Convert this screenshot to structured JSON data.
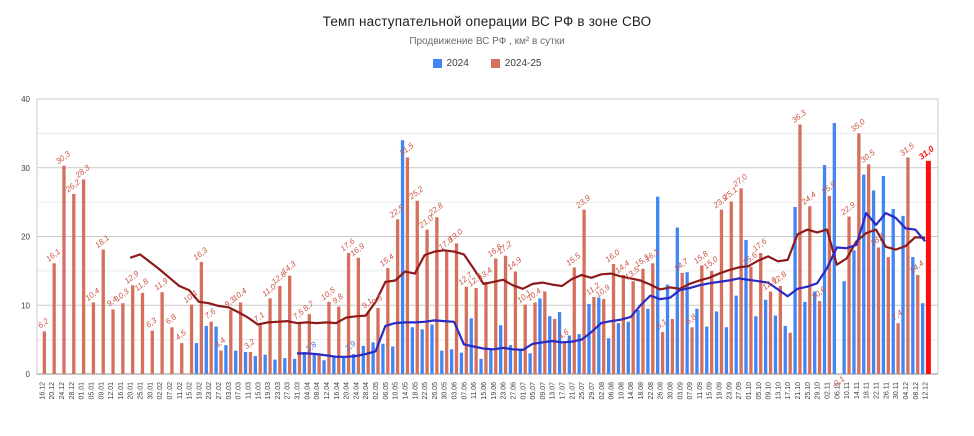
{
  "header": {
    "title": "Темп наступательной операции ВС РФ в зоне СВО",
    "subtitle": "Продвижение ВС РФ , км² в сутки"
  },
  "chart_data": {
    "type": "bar",
    "title": "Темп наступательной операции ВС РФ в зоне СВО",
    "subtitle": "Продвижение ВС РФ , км² в сутки",
    "ylim": [
      0,
      40
    ],
    "yticks": [
      0,
      10,
      20,
      30,
      40
    ],
    "yticks_minor": [
      5,
      15,
      25,
      35
    ],
    "grid": true,
    "legend_position": "top",
    "legend": [
      {
        "name": "2024",
        "color": "#4285f4"
      },
      {
        "name": "2024-25",
        "color": "#d4705c"
      }
    ],
    "colors": {
      "bar_2024": "#4285f4",
      "bar_2024_25": "#d4705c",
      "trend_2024": "#2a2ac4",
      "trend_2024_25": "#8e1b1b",
      "highlight_bar": "#fd0d0d",
      "label_2024": "#3c78d8",
      "label_2024_25": "#cb5542",
      "grid_major": "#c9c9c9",
      "grid_minor": "#ececec",
      "axis_line": "#8f8f8f",
      "tick_text": "#3c4043"
    },
    "highlight": {
      "category": "12.12",
      "index": 90,
      "label": "31,0"
    },
    "categories": [
      "16.12",
      "20.12",
      "24.12",
      "28.12",
      "01.01",
      "05.01",
      "09.01",
      "12.01",
      "16.01",
      "20.01",
      "25.01",
      "30.01",
      "02.02",
      "07.02",
      "11.02",
      "15.02",
      "19.02",
      "23.02",
      "27.02",
      "03.03",
      "07.03",
      "11.03",
      "15.03",
      "19.03",
      "23.03",
      "27.03",
      "31.03",
      "04.04",
      "08.04",
      "12.04",
      "16.04",
      "20.04",
      "24.04",
      "28.04",
      "02.05",
      "06.05",
      "10.05",
      "14.05",
      "18.05",
      "22.05",
      "26.05",
      "30.05",
      "03.06",
      "07.06",
      "11.06",
      "15.06",
      "19.06",
      "23.06",
      "27.06",
      "01.07",
      "05.07",
      "09.07",
      "13.07",
      "17.07",
      "21.07",
      "25.07",
      "29.07",
      "02.08",
      "06.08",
      "10.08",
      "14.08",
      "18.08",
      "22.08",
      "26.08",
      "30.08",
      "03.09",
      "07.09",
      "11.09",
      "15.09",
      "19.09",
      "23.09",
      "27.09",
      "01.10",
      "05.10",
      "09.10",
      "13.10",
      "17.10",
      "21.10",
      "25.10",
      "29.10",
      "02.11",
      "06.11",
      "10.11",
      "14.11",
      "18.11",
      "22.11",
      "26.11",
      "30.11",
      "04.12",
      "08.12",
      "12.12"
    ],
    "series": [
      {
        "name": "2024",
        "type": "bar",
        "color": "#4285f4",
        "values": [
          null,
          null,
          null,
          null,
          null,
          null,
          null,
          null,
          null,
          null,
          null,
          null,
          null,
          null,
          null,
          null,
          4.5,
          7.0,
          6.9,
          4.2,
          3.4,
          3.2,
          2.6,
          2.8,
          2.1,
          2.3,
          2.2,
          3.2,
          2.8,
          2.0,
          2.4,
          2.6,
          2.9,
          4.1,
          4.6,
          4.4,
          4.0,
          34.0,
          6.8,
          6.5,
          7.2,
          3.4,
          3.6,
          3.1,
          8.1,
          2.2,
          3.5,
          7.1,
          4.2,
          3.6,
          3.0,
          11.0,
          8.4,
          9.0,
          5.6,
          5.8,
          10.2,
          11.1,
          5.2,
          7.4,
          7.6,
          9.3,
          9.5,
          25.8,
          13.0,
          21.3,
          14.8,
          9.5,
          6.9,
          9.1,
          6.8,
          11.4,
          19.5,
          8.4,
          10.8,
          8.5,
          7.0,
          24.3,
          10.5,
          12.0,
          30.4,
          36.5,
          13.5,
          18.0,
          29.0,
          26.7,
          28.8,
          24.0,
          23.0,
          17.0,
          10.3
        ],
        "labels": [
          null,
          null,
          null,
          null,
          null,
          null,
          null,
          null,
          null,
          null,
          null,
          null,
          null,
          null,
          null,
          null,
          null,
          null,
          null,
          null,
          null,
          null,
          null,
          null,
          null,
          null,
          null,
          null,
          "2,8",
          null,
          null,
          null,
          "2,9",
          null,
          null,
          null,
          null,
          null,
          null,
          null,
          null,
          null,
          null,
          null,
          null,
          null,
          null,
          null,
          null,
          null,
          null,
          null,
          null,
          null,
          null,
          null,
          null,
          null,
          null,
          null,
          null,
          null,
          null,
          null,
          null,
          null,
          null,
          null,
          null,
          null,
          null,
          null,
          null,
          null,
          null,
          null,
          null,
          null,
          null,
          null,
          null,
          null,
          null,
          null,
          null,
          null,
          null,
          null,
          null,
          null,
          null
        ]
      },
      {
        "name": "2024-25",
        "type": "bar",
        "color": "#d4705c",
        "values": [
          6.2,
          16.1,
          30.3,
          26.2,
          28.3,
          10.4,
          18.1,
          9.4,
          10.3,
          12.9,
          11.8,
          6.3,
          11.9,
          6.8,
          4.5,
          10.1,
          16.3,
          7.6,
          3.4,
          9.3,
          10.4,
          3.2,
          7.1,
          11.0,
          12.8,
          14.3,
          7.5,
          8.7,
          3.0,
          10.5,
          9.8,
          17.6,
          16.9,
          9.1,
          9.6,
          15.4,
          22.5,
          31.5,
          25.2,
          21.0,
          22.8,
          17.8,
          19.0,
          12.7,
          12.5,
          13.4,
          16.8,
          17.2,
          14.9,
          10.1,
          10.4,
          12.0,
          8.0,
          4.6,
          15.5,
          23.9,
          11.2,
          10.9,
          16.0,
          14.4,
          13.5,
          15.3,
          16.1,
          6.1,
          8.0,
          14.7,
          6.8,
          15.8,
          15.0,
          23.9,
          25.1,
          27.0,
          15.6,
          17.6,
          12.0,
          12.8,
          6.0,
          36.3,
          24.4,
          10.6,
          25.9,
          -0.1,
          22.9,
          35.0,
          30.5,
          18.4,
          17.0,
          7.4,
          31.5,
          14.4,
          31.0
        ],
        "labels": [
          "6,2",
          "16,1",
          "30,3",
          "26,2",
          "28,3",
          "10,4",
          "18,1",
          "9,4",
          "10,3",
          "12,9",
          "11,8",
          "6,3",
          "11,9",
          "6,8",
          "4,5",
          "10,1",
          "16,3",
          "7,6",
          "3,4",
          "9,3",
          "10,4",
          "3,2",
          "7,1",
          "11,0",
          "12,8",
          "14,3",
          "7,5",
          "8,7",
          null,
          "10,5",
          "9,8",
          "17,6",
          "16,9",
          "9,1",
          "9,6",
          "15,4",
          "22,5",
          "31,5",
          "25,2",
          "21,0",
          "22,8",
          "17,8",
          "19,0",
          "12,7",
          "12,5",
          "13,4",
          "16,8",
          "17,2",
          "14,9",
          "10,1",
          "10,4",
          null,
          null,
          "4,6",
          "15,5",
          "23,9",
          "11,2",
          "10,9",
          "16,0",
          "14,4",
          "13,5",
          "15,3",
          "16,1",
          "6,1",
          null,
          "14,7",
          "6,8",
          "15,8",
          "15,0",
          "23,9",
          "25,1",
          "27,0",
          "15,6",
          "17,6",
          "12,0",
          "12,8",
          null,
          "36,3",
          "24,4",
          "10,6",
          "25,9",
          "-0,1",
          "22,9",
          "35,0",
          "30,5",
          "18,4",
          null,
          "7,4",
          "31,5",
          "14,4",
          "31,0"
        ]
      },
      {
        "name": "trend_2024_25",
        "type": "line",
        "color": "#8e1b1b",
        "values": [
          null,
          null,
          null,
          null,
          null,
          null,
          null,
          null,
          null,
          16.9,
          17.4,
          16.3,
          15.2,
          14.0,
          12.8,
          12.2,
          10.5,
          10.3,
          9.9,
          9.7,
          9.0,
          8.2,
          7.2,
          7.5,
          7.6,
          7.7,
          7.4,
          7.5,
          7.4,
          7.5,
          7.4,
          8.2,
          8.4,
          8.5,
          10.5,
          13.4,
          13.6,
          14.9,
          14.6,
          17.3,
          17.8,
          18.0,
          17.8,
          17.4,
          15.3,
          13.1,
          13.4,
          13.7,
          12.9,
          12.4,
          13.1,
          13.3,
          13.0,
          12.8,
          13.8,
          14.4,
          14.0,
          14.5,
          14.6,
          14.2,
          13.9,
          13.6,
          13.0,
          12.3,
          12.6,
          12.4,
          13.1,
          13.6,
          14.0,
          14.6,
          15.1,
          15.5,
          15.7,
          16.5,
          17.1,
          16.4,
          16.6,
          20.3,
          21.0,
          20.6,
          21.0,
          15.9,
          16.8,
          19.3,
          20.5,
          21.0,
          18.5,
          18.1,
          18.6,
          19.9,
          19.8
        ]
      },
      {
        "name": "trend_2024",
        "type": "line",
        "color": "#2a2ac4",
        "values": [
          null,
          null,
          null,
          null,
          null,
          null,
          null,
          null,
          null,
          null,
          null,
          null,
          null,
          null,
          null,
          null,
          null,
          null,
          null,
          null,
          null,
          null,
          null,
          null,
          null,
          null,
          3.0,
          3.0,
          2.9,
          2.7,
          2.5,
          2.5,
          2.6,
          2.9,
          3.3,
          7.0,
          7.4,
          7.5,
          7.5,
          7.6,
          7.8,
          7.7,
          7.6,
          4.3,
          4.0,
          3.7,
          3.6,
          3.8,
          3.6,
          3.5,
          4.4,
          4.6,
          4.8,
          4.6,
          4.7,
          5.0,
          6.1,
          7.4,
          7.7,
          7.9,
          8.3,
          10.0,
          11.4,
          10.9,
          11.1,
          12.2,
          12.5,
          12.9,
          13.2,
          13.4,
          13.6,
          13.9,
          13.7,
          13.5,
          13.3,
          12.3,
          11.3,
          12.4,
          12.7,
          13.2,
          15.4,
          18.4,
          18.3,
          18.8,
          23.4,
          21.7,
          23.4,
          22.7,
          21.2,
          21.0,
          19.3
        ]
      }
    ]
  }
}
